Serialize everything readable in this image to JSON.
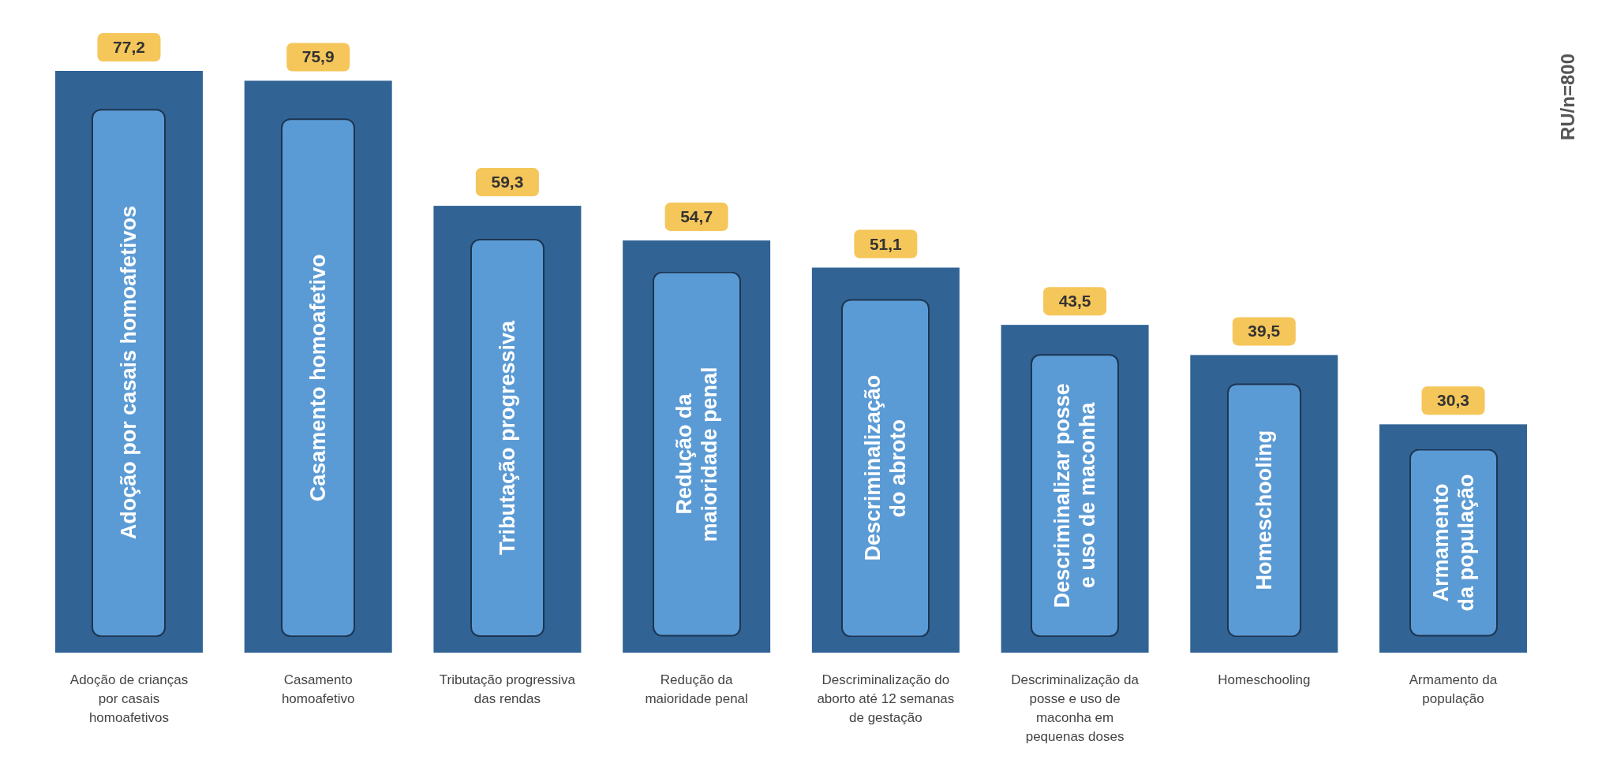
{
  "chart_data": {
    "type": "bar",
    "categories": [
      "Adoção de crianças por casais homoafetivos",
      "Casamento homoafetivo",
      "Tributação progressiva das rendas",
      "Redução da maioridade penal",
      "Descriminalização do aborto até 12 semanas de gestação",
      "Descriminalização da posse e uso de maconha em pequenas doses",
      "Homeschooling",
      "Armamento da população"
    ],
    "values": [
      77.2,
      75.9,
      59.3,
      54.7,
      51.1,
      43.5,
      39.5,
      30.3
    ],
    "value_labels": [
      "77,2",
      "75,9",
      "59,3",
      "54,7",
      "51,1",
      "43,5",
      "39,5",
      "30,3"
    ],
    "color": "#316395",
    "annotations": [
      "Adoção por casais homoafetivos",
      "Casamento homoafetivo",
      "Tributação progressiva",
      "Redução da\nmaioridade penal",
      "Descriminalização\ndo abroto",
      "Descriminalizar posse\ne uso de maconha",
      "Homeschooling",
      "Armamento\nda população",
      "RU/n=800"
    ]
  }
}
